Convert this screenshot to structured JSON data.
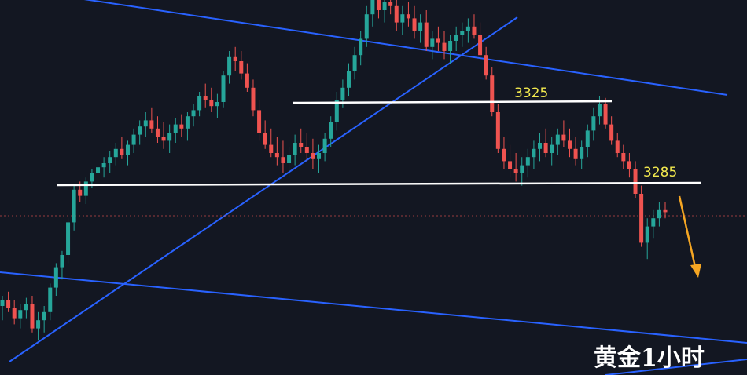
{
  "chart_data": {
    "type": "candlestick",
    "title": "黄金1小时",
    "colors": {
      "background": "#131722",
      "up": "#26a69a",
      "down": "#ef5350",
      "trend": "#2962ff",
      "level": "#ffffff",
      "label": "#f2e94e",
      "arrow": "#f5a623"
    },
    "levels": [
      {
        "label": "3325",
        "value": 3325
      },
      {
        "label": "3285",
        "value": 3285
      }
    ],
    "current_price": 3271,
    "bias": "down",
    "candles": [
      [
        3225,
        3230,
        3218,
        3228
      ],
      [
        3228,
        3232,
        3222,
        3224
      ],
      [
        3224,
        3228,
        3216,
        3219
      ],
      [
        3219,
        3226,
        3214,
        3223
      ],
      [
        3223,
        3229,
        3219,
        3226
      ],
      [
        3226,
        3230,
        3212,
        3214
      ],
      [
        3214,
        3222,
        3208,
        3218
      ],
      [
        3218,
        3225,
        3212,
        3222
      ],
      [
        3222,
        3236,
        3218,
        3234
      ],
      [
        3234,
        3246,
        3230,
        3244
      ],
      [
        3244,
        3252,
        3238,
        3250
      ],
      [
        3250,
        3268,
        3246,
        3266
      ],
      [
        3266,
        3285,
        3262,
        3282
      ],
      [
        3282,
        3286,
        3276,
        3279
      ],
      [
        3279,
        3288,
        3275,
        3286
      ],
      [
        3286,
        3292,
        3283,
        3290
      ],
      [
        3290,
        3296,
        3286,
        3293
      ],
      [
        3293,
        3298,
        3288,
        3295
      ],
      [
        3295,
        3301,
        3290,
        3298
      ],
      [
        3298,
        3305,
        3294,
        3302
      ],
      [
        3302,
        3308,
        3297,
        3299
      ],
      [
        3299,
        3306,
        3294,
        3304
      ],
      [
        3304,
        3312,
        3300,
        3309
      ],
      [
        3309,
        3316,
        3304,
        3313
      ],
      [
        3313,
        3320,
        3308,
        3316
      ],
      [
        3316,
        3322,
        3310,
        3312
      ],
      [
        3312,
        3318,
        3305,
        3308
      ],
      [
        3308,
        3315,
        3302,
        3306
      ],
      [
        3306,
        3314,
        3300,
        3310
      ],
      [
        3310,
        3317,
        3305,
        3314
      ],
      [
        3314,
        3319,
        3308,
        3312
      ],
      [
        3312,
        3320,
        3306,
        3318
      ],
      [
        3318,
        3324,
        3313,
        3321
      ],
      [
        3321,
        3330,
        3318,
        3328
      ],
      [
        3328,
        3334,
        3322,
        3326
      ],
      [
        3326,
        3332,
        3320,
        3323
      ],
      [
        3323,
        3329,
        3317,
        3325
      ],
      [
        3325,
        3340,
        3322,
        3338
      ],
      [
        3338,
        3350,
        3334,
        3347
      ],
      [
        3347,
        3352,
        3340,
        3345
      ],
      [
        3345,
        3350,
        3336,
        3339
      ],
      [
        3339,
        3344,
        3330,
        3332
      ],
      [
        3332,
        3336,
        3318,
        3321
      ],
      [
        3321,
        3326,
        3306,
        3310
      ],
      [
        3310,
        3316,
        3302,
        3304
      ],
      [
        3304,
        3312,
        3298,
        3300
      ],
      [
        3300,
        3308,
        3294,
        3298
      ],
      [
        3298,
        3306,
        3290,
        3295
      ],
      [
        3295,
        3303,
        3288,
        3299
      ],
      [
        3299,
        3309,
        3294,
        3305
      ],
      [
        3305,
        3312,
        3300,
        3303
      ],
      [
        3303,
        3310,
        3296,
        3300
      ],
      [
        3300,
        3307,
        3292,
        3297
      ],
      [
        3297,
        3304,
        3290,
        3300
      ],
      [
        3300,
        3310,
        3296,
        3307
      ],
      [
        3307,
        3318,
        3303,
        3315
      ],
      [
        3315,
        3330,
        3311,
        3326
      ],
      [
        3326,
        3336,
        3322,
        3332
      ],
      [
        3332,
        3344,
        3328,
        3340
      ],
      [
        3340,
        3352,
        3336,
        3348
      ],
      [
        3348,
        3360,
        3343,
        3356
      ],
      [
        3356,
        3372,
        3352,
        3368
      ],
      [
        3368,
        3380,
        3362,
        3376
      ],
      [
        3376,
        3382,
        3366,
        3370
      ],
      [
        3370,
        3378,
        3364,
        3374
      ],
      [
        3374,
        3380,
        3368,
        3372
      ],
      [
        3372,
        3376,
        3360,
        3364
      ],
      [
        3364,
        3372,
        3358,
        3368
      ],
      [
        3368,
        3374,
        3362,
        3366
      ],
      [
        3366,
        3372,
        3356,
        3360
      ],
      [
        3360,
        3368,
        3354,
        3364
      ],
      [
        3364,
        3370,
        3350,
        3352
      ],
      [
        3352,
        3360,
        3346,
        3356
      ],
      [
        3356,
        3362,
        3350,
        3354
      ],
      [
        3354,
        3360,
        3346,
        3350
      ],
      [
        3350,
        3358,
        3344,
        3355
      ],
      [
        3355,
        3362,
        3350,
        3358
      ],
      [
        3358,
        3364,
        3352,
        3360
      ],
      [
        3360,
        3366,
        3354,
        3362
      ],
      [
        3362,
        3368,
        3356,
        3358
      ],
      [
        3358,
        3364,
        3346,
        3348
      ],
      [
        3348,
        3352,
        3336,
        3338
      ],
      [
        3338,
        3342,
        3318,
        3320
      ],
      [
        3320,
        3324,
        3300,
        3302
      ],
      [
        3302,
        3308,
        3292,
        3296
      ],
      [
        3296,
        3304,
        3288,
        3292
      ],
      [
        3292,
        3300,
        3286,
        3290
      ],
      [
        3290,
        3298,
        3284,
        3294
      ],
      [
        3294,
        3302,
        3288,
        3298
      ],
      [
        3298,
        3306,
        3292,
        3302
      ],
      [
        3302,
        3310,
        3296,
        3305
      ],
      [
        3305,
        3312,
        3298,
        3300
      ],
      [
        3300,
        3308,
        3294,
        3304
      ],
      [
        3304,
        3312,
        3299,
        3309
      ],
      [
        3309,
        3316,
        3303,
        3306
      ],
      [
        3306,
        3312,
        3298,
        3302
      ],
      [
        3302,
        3308,
        3294,
        3297
      ],
      [
        3297,
        3306,
        3292,
        3303
      ],
      [
        3303,
        3314,
        3298,
        3311
      ],
      [
        3311,
        3322,
        3306,
        3318
      ],
      [
        3318,
        3328,
        3314,
        3324
      ],
      [
        3324,
        3327,
        3312,
        3314
      ],
      [
        3314,
        3318,
        3304,
        3306
      ],
      [
        3306,
        3310,
        3298,
        3300
      ],
      [
        3300,
        3304,
        3292,
        3296
      ],
      [
        3296,
        3300,
        3288,
        3292
      ],
      [
        3292,
        3296,
        3278,
        3280
      ],
      [
        3280,
        3284,
        3254,
        3256
      ],
      [
        3256,
        3268,
        3248,
        3264
      ],
      [
        3264,
        3272,
        3258,
        3268
      ],
      [
        3268,
        3276,
        3264,
        3272
      ],
      [
        3272,
        3276,
        3268,
        3271
      ]
    ]
  }
}
